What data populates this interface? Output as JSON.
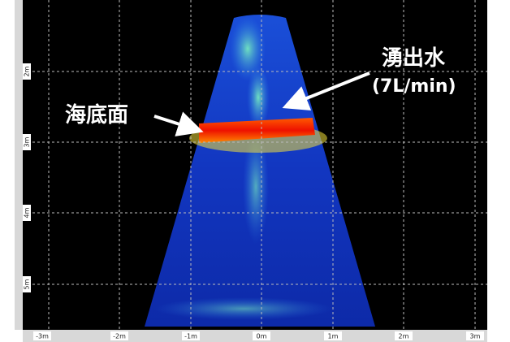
{
  "annotations": {
    "seafloor": "海底面",
    "seep_water": "湧出水",
    "flow_rate": "(7L/min)"
  },
  "x_axis": {
    "labels": [
      "-3m",
      "-2m",
      "-1m",
      "0m",
      "1m",
      "2m",
      "3m"
    ]
  },
  "y_axis": {
    "labels": [
      "2m",
      "3m",
      "4m",
      "5m"
    ]
  }
}
